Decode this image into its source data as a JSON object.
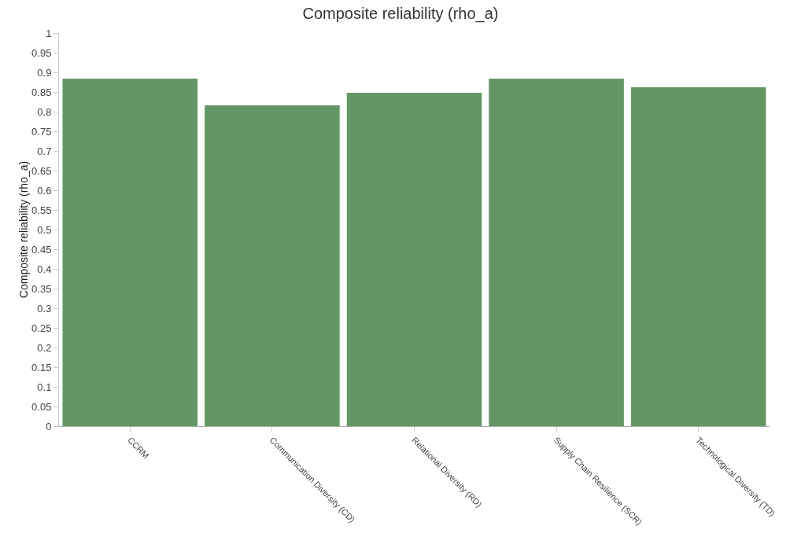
{
  "chart_data": {
    "type": "bar",
    "title": "Composite reliability (rho_a)",
    "ylabel": "Composite reliability (rho_a)",
    "categories": [
      "CCRM",
      "Communication Diversity (CD)",
      "Relational Diversity (RD)",
      "Supply Chain Resilience (SCR)",
      "Technological Diversity (TD)"
    ],
    "values": [
      0.884,
      0.816,
      0.848,
      0.884,
      0.862
    ],
    "color": "#629765",
    "ylim": [
      0,
      1
    ],
    "yticks": [
      0,
      0.05,
      0.1,
      0.15,
      0.2,
      0.25,
      0.3,
      0.35,
      0.4,
      0.45,
      0.5,
      0.55,
      0.6,
      0.65,
      0.7,
      0.75,
      0.8,
      0.85,
      0.9,
      0.95,
      1
    ],
    "grid": false
  }
}
